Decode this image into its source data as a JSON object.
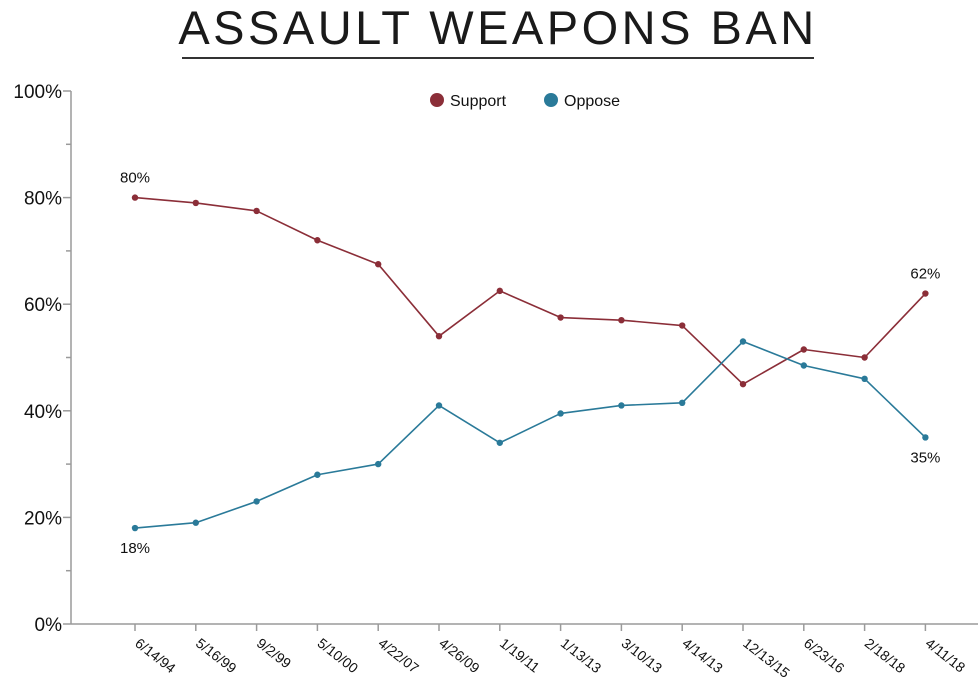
{
  "chart_data": {
    "type": "line",
    "title": "ASSAULT WEAPONS BAN",
    "xlabel": "",
    "ylabel": "",
    "categories": [
      "6/14/94",
      "5/16/99",
      "9/2/99",
      "5/10/00",
      "4/22/07",
      "4/26/09",
      "1/19/11",
      "1/13/13",
      "3/10/13",
      "4/14/13",
      "12/13/15",
      "6/23/16",
      "2/18/18",
      "4/11/18"
    ],
    "series": [
      {
        "name": "Support",
        "color": "#8b2e38",
        "values": [
          80,
          79,
          77.5,
          72,
          67.5,
          54,
          62.5,
          57.5,
          57,
          56,
          45,
          51.5,
          50,
          62
        ]
      },
      {
        "name": "Oppose",
        "color": "#2a7a99",
        "values": [
          18,
          19,
          23,
          28,
          30,
          41,
          34,
          39.5,
          41,
          41.5,
          53,
          48.5,
          46,
          35
        ]
      }
    ],
    "ylim": [
      0,
      100
    ],
    "y_ticks": [
      0,
      20,
      40,
      60,
      80,
      100
    ],
    "y_tick_labels": [
      "0%",
      "20%",
      "40%",
      "60%",
      "80%",
      "100%"
    ],
    "grid": false,
    "legend_placement": "top-center",
    "annotations": [
      {
        "series": "Support",
        "category": "6/14/94",
        "text": "80%",
        "placement": "above"
      },
      {
        "series": "Oppose",
        "category": "6/14/94",
        "text": "18%",
        "placement": "below"
      },
      {
        "series": "Support",
        "category": "4/11/18",
        "text": "62%",
        "placement": "above"
      },
      {
        "series": "Oppose",
        "category": "4/11/18",
        "text": "35%",
        "placement": "below"
      }
    ]
  }
}
